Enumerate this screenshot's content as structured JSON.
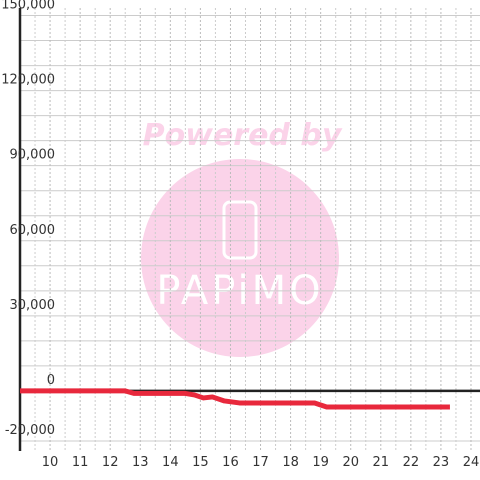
{
  "chart_data": {
    "type": "line",
    "watermark": [
      "Powered by",
      "PAPiMO"
    ],
    "x": [
      9,
      12.5,
      12.8,
      14.5,
      14.8,
      15.1,
      15.4,
      15.8,
      16.3,
      18.8,
      19.2,
      23.3
    ],
    "series": [
      {
        "color": "#e8283c",
        "values": [
          0,
          0,
          -1000,
          -1000,
          -1600,
          -2800,
          -2400,
          -4000,
          -4800,
          -4800,
          -6400,
          -6400
        ]
      }
    ],
    "xlim": [
      9,
      24.3
    ],
    "xticks": [
      10,
      11,
      12,
      13,
      14,
      15,
      16,
      17,
      18,
      19,
      20,
      21,
      22,
      23,
      24
    ],
    "ylim": [
      -24000,
      153000
    ],
    "yticks": [
      {
        "value": -20000,
        "label": "-20,000"
      },
      0,
      {
        "value": 30000,
        "label": "30,000"
      },
      {
        "value": 60000,
        "label": "60,000"
      },
      {
        "value": 90000,
        "label": "90,000"
      },
      {
        "value": 120000,
        "label": "120,000"
      },
      {
        "value": 150000,
        "label": "150,000"
      }
    ],
    "grid": true
  }
}
